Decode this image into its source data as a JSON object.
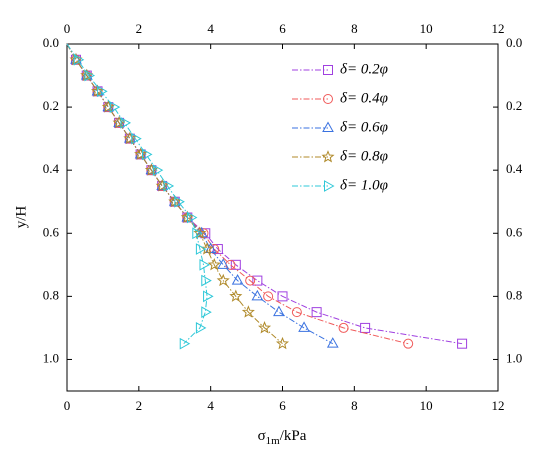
{
  "chart_data": {
    "type": "line",
    "ylabel": "y/H",
    "xlabel": [
      "σ",
      "1m",
      "/kPa"
    ],
    "xlim": [
      0,
      12
    ],
    "xticks": [
      0,
      2,
      4,
      6,
      8,
      10,
      12
    ],
    "ylim": [
      0,
      1.1
    ],
    "yticks": [
      {
        "value": 0,
        "label": "0.0"
      },
      0.2,
      0.4,
      0.6,
      0.8,
      {
        "value": 1,
        "label": "1.0"
      }
    ],
    "y_inverted": true,
    "y": [
      0,
      0.05,
      0.1,
      0.15,
      0.2,
      0.25,
      0.3,
      0.35,
      0.4,
      0.45,
      0.5,
      0.55,
      0.6,
      0.65,
      0.7,
      0.75,
      0.8,
      0.85,
      0.9,
      0.95
    ],
    "series": [
      {
        "name": "δ= 0.2φ",
        "color": "#a040e0",
        "marker": "square",
        "x": [
          0,
          0.25,
          0.55,
          0.85,
          1.15,
          1.45,
          1.75,
          2.05,
          2.35,
          2.65,
          3.0,
          3.35,
          3.85,
          4.2,
          4.7,
          5.3,
          6.0,
          6.95,
          8.3,
          11.0
        ]
      },
      {
        "name": "δ= 0.4φ",
        "color": "#f05a5a",
        "marker": "circle",
        "x": [
          0,
          0.25,
          0.55,
          0.85,
          1.15,
          1.45,
          1.75,
          2.05,
          2.35,
          2.65,
          3.0,
          3.35,
          3.8,
          4.1,
          4.55,
          5.1,
          5.6,
          6.4,
          7.7,
          9.5
        ]
      },
      {
        "name": "δ= 0.6φ",
        "color": "#3a72e0",
        "marker": "triangle",
        "x": [
          0,
          0.25,
          0.55,
          0.85,
          1.15,
          1.45,
          1.75,
          2.05,
          2.35,
          2.65,
          3.0,
          3.35,
          3.75,
          4.0,
          4.35,
          4.75,
          5.3,
          5.9,
          6.6,
          7.4
        ]
      },
      {
        "name": "δ= 0.8φ",
        "color": "#b08a2a",
        "marker": "star",
        "x": [
          0,
          0.25,
          0.55,
          0.85,
          1.15,
          1.45,
          1.75,
          2.05,
          2.35,
          2.65,
          3.0,
          3.35,
          3.7,
          3.9,
          4.1,
          4.35,
          4.7,
          5.05,
          5.5,
          6.0
        ]
      },
      {
        "name": "δ= 1.0φ",
        "color": "#2ec8d8",
        "marker": "triangle-right",
        "x": [
          0,
          0.3,
          0.6,
          0.95,
          1.3,
          1.6,
          1.9,
          2.2,
          2.5,
          2.8,
          3.1,
          3.45,
          3.6,
          3.7,
          3.8,
          3.85,
          3.9,
          3.85,
          3.7,
          3.25
        ]
      }
    ],
    "legend": "upper right"
  }
}
